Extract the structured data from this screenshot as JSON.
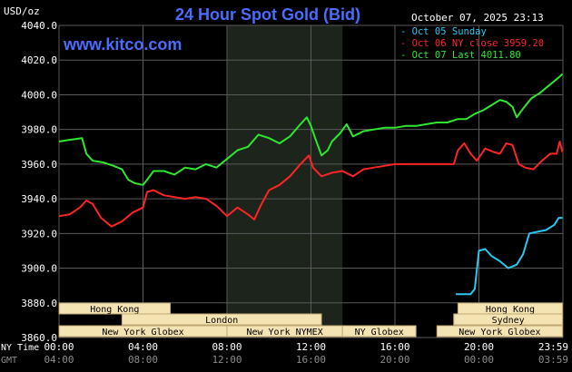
{
  "header": {
    "title": "24 Hour Spot Gold (Bid)",
    "site": "www.kitco.com",
    "unit": "USD/oz",
    "timestamp": "October 07, 2025 23:13"
  },
  "legend": [
    {
      "text": "- Oct 05 Sunday",
      "color": "#29c8f0"
    },
    {
      "text": "- Oct 06 NY close 3959.20",
      "color": "#ff2424"
    },
    {
      "text": "- Oct 07 Last 4011.80",
      "color": "#2ee82e"
    }
  ],
  "colors": {
    "background": "#000000",
    "grid": "#5a5a5a",
    "title": "#4a6cff",
    "site": "#4a6cff",
    "nymex_band": "#1c241c",
    "session_box": "#f4e4b4",
    "session_border": "#bfa870"
  },
  "chart_data": {
    "type": "line",
    "title": "24 Hour Spot Gold (Bid)",
    "ylabel": "USD/oz",
    "ylim": [
      3860,
      4040
    ],
    "xlim": [
      0,
      24
    ],
    "grid": true,
    "legend_position": "top-right",
    "y_ticks": [
      "4040.0",
      "4020.0",
      "4000.0",
      "3980.0",
      "3960.0",
      "3940.0",
      "3920.0",
      "3900.0",
      "3880.0",
      "3860.0"
    ],
    "x_ticks_ny": [
      "00:00",
      "04:00",
      "08:00",
      "12:00",
      "16:00",
      "20:00",
      "23:59"
    ],
    "x_ticks_gmt": [
      "04:00",
      "08:00",
      "12:00",
      "16:00",
      "20:00",
      "00:00",
      "03:59"
    ],
    "x_axis_rows": [
      "NY Time",
      "GMT"
    ],
    "series": [
      {
        "name": "Oct 05 Sunday",
        "color": "#29c8f0",
        "points": [
          [
            18.9,
            3885
          ],
          [
            19.6,
            3885
          ],
          [
            19.8,
            3888
          ],
          [
            20.0,
            3910
          ],
          [
            20.3,
            3911
          ],
          [
            20.6,
            3907
          ],
          [
            21.0,
            3904
          ],
          [
            21.4,
            3900
          ],
          [
            21.8,
            3902
          ],
          [
            22.1,
            3908
          ],
          [
            22.4,
            3920
          ],
          [
            22.8,
            3921
          ],
          [
            23.2,
            3922
          ],
          [
            23.59,
            3925
          ],
          [
            23.8,
            3929
          ],
          [
            23.98,
            3929
          ]
        ]
      },
      {
        "name": "Oct 06 NY close 3959.20",
        "color": "#ff2424",
        "points": [
          [
            0,
            3930
          ],
          [
            0.5,
            3931
          ],
          [
            1,
            3935
          ],
          [
            1.3,
            3939
          ],
          [
            1.6,
            3937
          ],
          [
            2,
            3929
          ],
          [
            2.5,
            3924
          ],
          [
            3,
            3927
          ],
          [
            3.5,
            3932
          ],
          [
            4,
            3935
          ],
          [
            4.2,
            3944
          ],
          [
            4.5,
            3945
          ],
          [
            5,
            3942
          ],
          [
            5.5,
            3941
          ],
          [
            6,
            3940
          ],
          [
            6.5,
            3941
          ],
          [
            7,
            3940
          ],
          [
            7.5,
            3936
          ],
          [
            8,
            3930
          ],
          [
            8.5,
            3935
          ],
          [
            9,
            3931
          ],
          [
            9.3,
            3928
          ],
          [
            9.6,
            3936
          ],
          [
            10,
            3945
          ],
          [
            10.5,
            3948
          ],
          [
            11,
            3953
          ],
          [
            11.5,
            3960
          ],
          [
            11.9,
            3965
          ],
          [
            12.1,
            3958
          ],
          [
            12.5,
            3953
          ],
          [
            13,
            3955
          ],
          [
            13.5,
            3956
          ],
          [
            14,
            3953
          ],
          [
            14.5,
            3957
          ],
          [
            15,
            3958
          ],
          [
            15.5,
            3959
          ],
          [
            16,
            3960
          ],
          [
            16.5,
            3960
          ],
          [
            17,
            3960
          ],
          [
            17.5,
            3960
          ],
          [
            18,
            3960
          ],
          [
            18.5,
            3960
          ],
          [
            18.8,
            3960
          ],
          [
            19,
            3968
          ],
          [
            19.3,
            3972
          ],
          [
            19.6,
            3966
          ],
          [
            19.9,
            3962
          ],
          [
            20.3,
            3969
          ],
          [
            20.7,
            3967
          ],
          [
            21,
            3966
          ],
          [
            21.3,
            3972
          ],
          [
            21.6,
            3971
          ],
          [
            21.9,
            3960
          ],
          [
            22.2,
            3958
          ],
          [
            22.6,
            3957
          ],
          [
            23,
            3962
          ],
          [
            23.4,
            3966
          ],
          [
            23.7,
            3966
          ],
          [
            23.85,
            3973
          ],
          [
            23.98,
            3967
          ]
        ]
      },
      {
        "name": "Oct 07 Last 4011.80",
        "color": "#2ee82e",
        "points": [
          [
            0,
            3973
          ],
          [
            0.5,
            3974
          ],
          [
            1.1,
            3975
          ],
          [
            1.3,
            3966
          ],
          [
            1.6,
            3962
          ],
          [
            2.1,
            3961
          ],
          [
            2.6,
            3959
          ],
          [
            3,
            3957
          ],
          [
            3.3,
            3951
          ],
          [
            3.6,
            3949
          ],
          [
            4,
            3948
          ],
          [
            4.2,
            3951
          ],
          [
            4.5,
            3956
          ],
          [
            5,
            3956
          ],
          [
            5.5,
            3954
          ],
          [
            6,
            3958
          ],
          [
            6.5,
            3957
          ],
          [
            7,
            3960
          ],
          [
            7.5,
            3958
          ],
          [
            8,
            3963
          ],
          [
            8.5,
            3968
          ],
          [
            9,
            3970
          ],
          [
            9.5,
            3977
          ],
          [
            10,
            3975
          ],
          [
            10.5,
            3972
          ],
          [
            11,
            3976
          ],
          [
            11.5,
            3983
          ],
          [
            11.8,
            3987
          ],
          [
            12,
            3982
          ],
          [
            12.2,
            3975
          ],
          [
            12.5,
            3965
          ],
          [
            12.8,
            3968
          ],
          [
            13,
            3973
          ],
          [
            13.4,
            3978
          ],
          [
            13.7,
            3983
          ],
          [
            14,
            3976
          ],
          [
            14.5,
            3979
          ],
          [
            15,
            3980
          ],
          [
            15.5,
            3981
          ],
          [
            16,
            3981
          ],
          [
            16.5,
            3982
          ],
          [
            17,
            3982
          ],
          [
            17.5,
            3983
          ],
          [
            18,
            3984
          ],
          [
            18.5,
            3984
          ],
          [
            19,
            3986
          ],
          [
            19.4,
            3986
          ],
          [
            19.8,
            3989
          ],
          [
            20.2,
            3991
          ],
          [
            20.6,
            3994
          ],
          [
            21,
            3997
          ],
          [
            21.3,
            3996
          ],
          [
            21.6,
            3993
          ],
          [
            21.8,
            3987
          ],
          [
            22.1,
            3992
          ],
          [
            22.5,
            3998
          ],
          [
            22.9,
            4001
          ],
          [
            23.2,
            4004
          ],
          [
            23.5,
            4007
          ],
          [
            23.8,
            4010
          ],
          [
            23.98,
            4012
          ]
        ]
      }
    ],
    "sessions": [
      {
        "label": "Hong Kong",
        "row": 0,
        "start": 0,
        "end": 5.3
      },
      {
        "label": "London",
        "row": 1,
        "start": 3,
        "end": 12.5
      },
      {
        "label": "New York Globex",
        "row": 2,
        "start": 0,
        "end": 8
      },
      {
        "label": "New York NYMEX",
        "row": 2,
        "start": 8,
        "end": 13.5
      },
      {
        "label": "NY Globex",
        "row": 2,
        "start": 13.5,
        "end": 17
      },
      {
        "label": "Hong Kong",
        "row": 0,
        "start": 19,
        "end": 23.98
      },
      {
        "label": "Sydney",
        "row": 1,
        "start": 18.8,
        "end": 23.98
      },
      {
        "label": "New York Globex",
        "row": 2,
        "start": 18,
        "end": 23.98
      }
    ],
    "nymex_band": [
      8,
      13.5
    ]
  }
}
